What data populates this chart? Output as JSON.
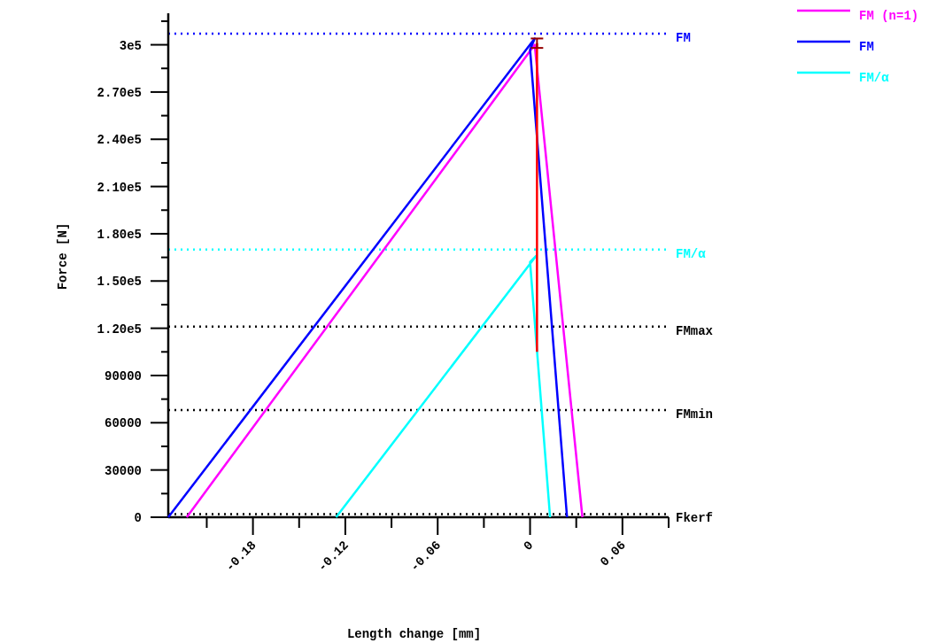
{
  "chart_data": {
    "type": "line",
    "xlabel": "Length change [mm]",
    "ylabel": "Force [N]",
    "xlim": [
      -0.235,
      0.09
    ],
    "ylim": [
      0,
      320000
    ],
    "xticks": [
      {
        "value": -0.21,
        "label": null
      },
      {
        "value": -0.18,
        "label": "-0.18"
      },
      {
        "value": -0.15,
        "label": null
      },
      {
        "value": -0.12,
        "label": "-0.12"
      },
      {
        "value": -0.09,
        "label": null
      },
      {
        "value": -0.06,
        "label": "-0.06"
      },
      {
        "value": -0.03,
        "label": null
      },
      0,
      {
        "value": 0.03,
        "label": null
      },
      {
        "value": 0.06,
        "label": "0.06"
      },
      {
        "value": 0.09,
        "label": null
      }
    ],
    "yticks": [
      0,
      {
        "value": 15000,
        "label": null
      },
      30000,
      {
        "value": 45000,
        "label": null
      },
      60000,
      {
        "value": 75000,
        "label": null
      },
      90000,
      {
        "value": 105000,
        "label": null
      },
      {
        "value": 120000,
        "label": "1.20e5"
      },
      {
        "value": 135000,
        "label": null
      },
      {
        "value": 150000,
        "label": "1.50e5"
      },
      {
        "value": 165000,
        "label": null
      },
      {
        "value": 180000,
        "label": "1.80e5"
      },
      {
        "value": 195000,
        "label": null
      },
      {
        "value": 210000,
        "label": "2.10e5"
      },
      {
        "value": 225000,
        "label": null
      },
      {
        "value": 240000,
        "label": "2.40e5"
      },
      {
        "value": 255000,
        "label": null
      },
      {
        "value": 270000,
        "label": "2.70e5"
      },
      {
        "value": 285000,
        "label": null
      },
      {
        "value": 300000,
        "label": "3e5"
      },
      {
        "value": 315000,
        "label": null
      }
    ],
    "legend": "top right",
    "marker": "none",
    "line_style": "solid",
    "series": [
      {
        "name": "FM (n=1)",
        "color": "#ff00ff",
        "x": [
          -0.223,
          0.003,
          0.034
        ],
        "values": [
          0,
          300000,
          0
        ]
      },
      {
        "name": "FM",
        "color": "#0000ff",
        "x": [
          -0.235,
          0.003,
          0,
          0.024
        ],
        "values": [
          0,
          304000,
          297000,
          0
        ]
      },
      {
        "name": "FM/α",
        "color": "#00ffff",
        "x": [
          -0.126,
          0.004,
          0,
          0.013
        ],
        "values": [
          0,
          166000,
          162000,
          0
        ]
      },
      {
        "color": "#ff0000",
        "x": [
          0.0045,
          0.0045
        ],
        "values": [
          301000,
          105000
        ],
        "errors": [
          3000,
          null
        ]
      }
    ],
    "ref_lines": [
      {
        "axis": "y",
        "value": 307000,
        "label": "FM",
        "color": "#0000ff",
        "line_style": "dotted"
      },
      {
        "axis": "y",
        "value": 170000,
        "label": "FM/α",
        "color": "#00ffff",
        "line_style": "dotted"
      },
      {
        "axis": "y",
        "value": 121000,
        "label": "FMmax",
        "color": "#000000",
        "line_style": "dotted"
      },
      {
        "axis": "y",
        "value": 68000,
        "label": "FMmin",
        "color": "#000000",
        "line_style": "dotted"
      },
      {
        "axis": "y",
        "value": 2000,
        "label": "Fkerf",
        "color": "#000000",
        "line_style": "dotted"
      }
    ]
  }
}
